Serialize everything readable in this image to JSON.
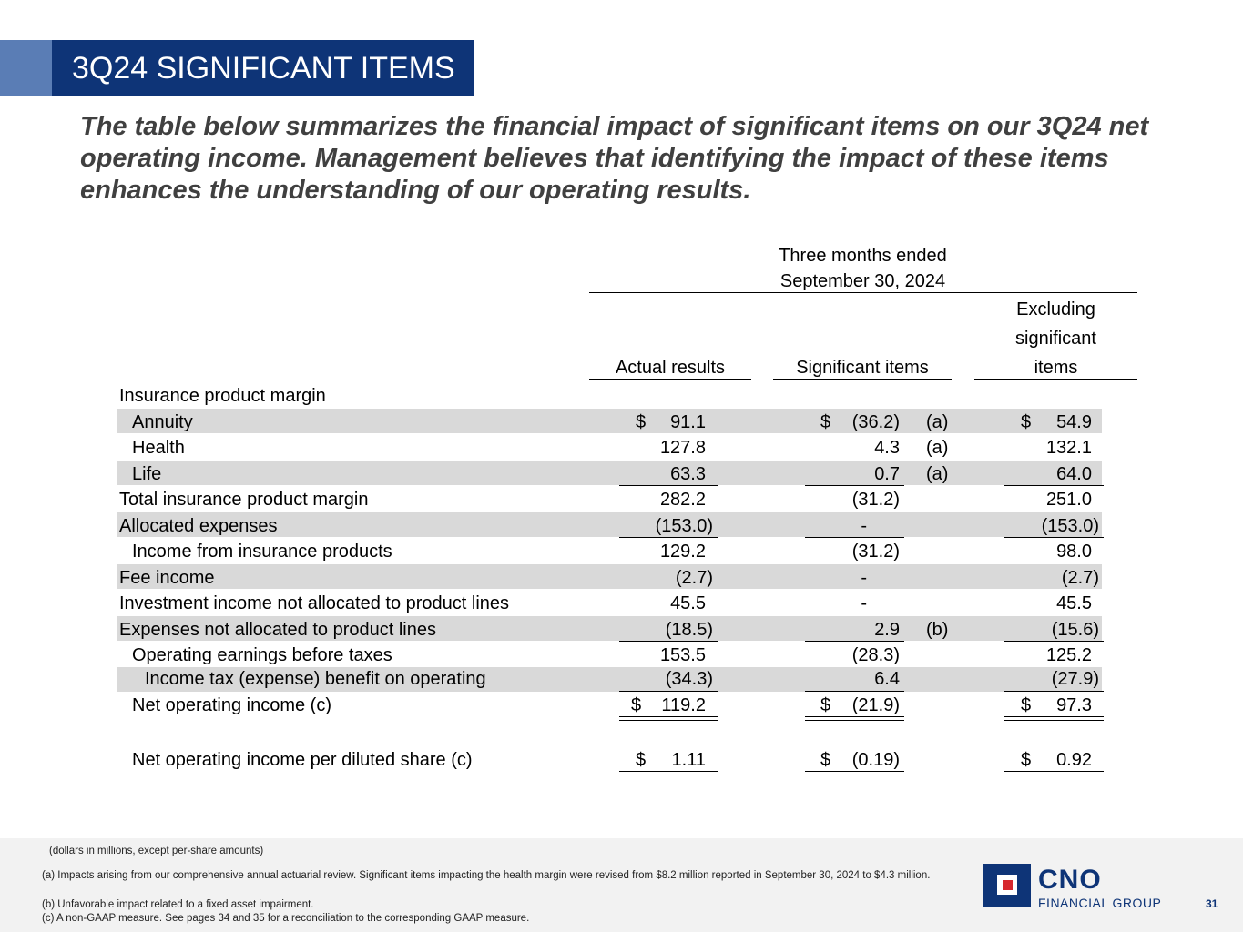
{
  "title": "3Q24 SIGNIFICANT ITEMS",
  "intro": "The table below summarizes the financial impact of significant items on our 3Q24 net operating income. Management believes that identifying the impact of these items enhances the understanding of our operating results.",
  "table": {
    "period_line1": "Three months ended",
    "period_line2": "September 30, 2024",
    "col_actual": "Actual results",
    "col_significant": "Significant items",
    "col_excl_line1": "Excluding",
    "col_excl_line2": "significant",
    "col_excl_line3": "items",
    "section_label": "Insurance product margin",
    "rows": [
      {
        "label": "Annuity",
        "actual_dollar": "$",
        "actual": "91.1",
        "sig_dollar": "$",
        "sig": "(36.2)",
        "note": "(a)",
        "excl_dollar": "$",
        "excl": "54.9"
      },
      {
        "label": "Health",
        "actual_dollar": "",
        "actual": "127.8",
        "sig_dollar": "",
        "sig": "4.3",
        "note": "(a)",
        "excl_dollar": "",
        "excl": "132.1"
      },
      {
        "label": "Life",
        "actual_dollar": "",
        "actual": "63.3",
        "sig_dollar": "",
        "sig": "0.7",
        "note": "(a)",
        "excl_dollar": "",
        "excl": "64.0"
      },
      {
        "label": "Total insurance product margin",
        "actual_dollar": "",
        "actual": "282.2",
        "sig_dollar": "",
        "sig": "(31.2)",
        "note": "",
        "excl_dollar": "",
        "excl": "251.0"
      },
      {
        "label": "Allocated expenses",
        "actual_dollar": "",
        "actual": "(153.0)",
        "sig_dollar": "",
        "sig": "-",
        "note": "",
        "excl_dollar": "",
        "excl": "(153.0)"
      },
      {
        "label": "Income from insurance products",
        "actual_dollar": "",
        "actual": "129.2",
        "sig_dollar": "",
        "sig": "(31.2)",
        "note": "",
        "excl_dollar": "",
        "excl": "98.0"
      },
      {
        "label": "Fee income",
        "actual_dollar": "",
        "actual": "(2.7)",
        "sig_dollar": "",
        "sig": "-",
        "note": "",
        "excl_dollar": "",
        "excl": "(2.7)"
      },
      {
        "label": "Investment income not allocated to product lines",
        "actual_dollar": "",
        "actual": "45.5",
        "sig_dollar": "",
        "sig": "-",
        "note": "",
        "excl_dollar": "",
        "excl": "45.5"
      },
      {
        "label": "Expenses not allocated to product lines",
        "actual_dollar": "",
        "actual": "(18.5)",
        "sig_dollar": "",
        "sig": "2.9",
        "note": "(b)",
        "excl_dollar": "",
        "excl": "(15.6)"
      },
      {
        "label": "Operating earnings before taxes",
        "actual_dollar": "",
        "actual": "153.5",
        "sig_dollar": "",
        "sig": "(28.3)",
        "note": "",
        "excl_dollar": "",
        "excl": "125.2"
      },
      {
        "label": "Income tax (expense) benefit on operating",
        "actual_dollar": "",
        "actual": "(34.3)",
        "sig_dollar": "",
        "sig": "6.4",
        "note": "",
        "excl_dollar": "",
        "excl": "(27.9)"
      },
      {
        "label": "Net operating income (c)",
        "actual_dollar": "$",
        "actual": "119.2",
        "sig_dollar": "$",
        "sig": "(21.9)",
        "note": "",
        "excl_dollar": "$",
        "excl": "97.3"
      },
      {
        "label": "Net operating income per diluted share (c)",
        "actual_dollar": "$",
        "actual": "1.11",
        "sig_dollar": "$",
        "sig": "(0.19)",
        "note": "",
        "excl_dollar": "$",
        "excl": "0.92"
      }
    ]
  },
  "footer": {
    "units_note": "(dollars in millions, except per-share amounts)",
    "note_a": "(a) Impacts arising from our comprehensive annual actuarial review. Significant items impacting the health margin were revised from $8.2 million reported in September 30, 2024 to $4.3 million.",
    "note_b": "(b) Unfavorable impact related to a fixed asset impairment.",
    "note_c": "(c) A non-GAAP measure. See pages 34 and 35 for a reconciliation to the corresponding GAAP measure.",
    "logo_name": "CNO",
    "logo_sub": "FINANCIAL GROUP",
    "page_number": "31"
  }
}
